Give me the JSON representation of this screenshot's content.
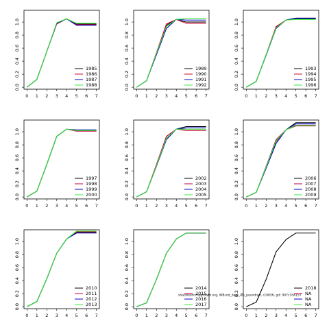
{
  "chart_data": [
    {
      "type": "line",
      "x": [
        0,
        1,
        2,
        3,
        4,
        5,
        6,
        7
      ],
      "xlim": [
        -0.3,
        7.3
      ],
      "ylim": [
        -0.03,
        1.18
      ],
      "xticks": [
        0,
        1,
        2,
        3,
        4,
        5,
        6,
        7
      ],
      "yticks": [
        {
          "value": 0,
          "label": "0.0"
        },
        0.2,
        0.4,
        0.6,
        0.8,
        {
          "value": 1,
          "label": "1.0"
        }
      ],
      "legend": "lower right",
      "series": [
        {
          "name": "1985",
          "color": "#000000",
          "values": [
            0,
            0.12,
            0.55,
            0.98,
            1.05,
            0.97,
            0.97,
            0.97
          ]
        },
        {
          "name": "1986",
          "color": "#cc0033",
          "values": [
            0,
            0.12,
            0.55,
            0.97,
            1.05,
            0.96,
            0.96,
            0.96
          ]
        },
        {
          "name": "1987",
          "color": "#0000cc",
          "values": [
            0,
            0.12,
            0.55,
            0.98,
            1.05,
            0.95,
            0.95,
            0.95
          ]
        },
        {
          "name": "1988",
          "color": "#33ee33",
          "values": [
            0,
            0.12,
            0.55,
            0.99,
            1.05,
            0.98,
            0.98,
            0.98
          ]
        }
      ]
    },
    {
      "type": "line",
      "x": [
        0,
        1,
        2,
        3,
        4,
        5,
        6,
        7
      ],
      "xlim": [
        -0.3,
        7.3
      ],
      "ylim": [
        -0.03,
        1.18
      ],
      "xticks": [
        0,
        1,
        2,
        3,
        4,
        5,
        6,
        7
      ],
      "yticks": [
        {
          "value": 0,
          "label": "0.0"
        },
        0.2,
        0.4,
        0.6,
        0.8,
        {
          "value": 1,
          "label": "1.0"
        }
      ],
      "legend": "lower right",
      "series": [
        {
          "name": "1989",
          "color": "#000000",
          "values": [
            0,
            0.1,
            0.52,
            0.95,
            1.04,
            1.0,
            1.0,
            1.0
          ]
        },
        {
          "name": "1990",
          "color": "#cc0033",
          "values": [
            0,
            0.1,
            0.53,
            0.97,
            1.04,
            0.98,
            0.98,
            0.98
          ]
        },
        {
          "name": "1991",
          "color": "#0000cc",
          "values": [
            0,
            0.1,
            0.5,
            0.9,
            1.04,
            1.03,
            1.03,
            1.03
          ]
        },
        {
          "name": "1992",
          "color": "#33ee33",
          "values": [
            0,
            0.1,
            0.52,
            0.93,
            1.04,
            1.05,
            1.05,
            1.05
          ]
        }
      ]
    },
    {
      "type": "line",
      "x": [
        0,
        1,
        2,
        3,
        4,
        5,
        6,
        7
      ],
      "xlim": [
        -0.3,
        7.3
      ],
      "ylim": [
        -0.03,
        1.18
      ],
      "xticks": [
        0,
        1,
        2,
        3,
        4,
        5,
        6,
        7
      ],
      "yticks": [
        {
          "value": 0,
          "label": "0.0"
        },
        0.2,
        0.4,
        0.6,
        0.8,
        {
          "value": 1,
          "label": "1.0"
        }
      ],
      "legend": "lower right",
      "series": [
        {
          "name": "1993",
          "color": "#000000",
          "values": [
            0,
            0.09,
            0.5,
            0.92,
            1.03,
            1.05,
            1.05,
            1.05
          ]
        },
        {
          "name": "1994",
          "color": "#cc0033",
          "values": [
            0,
            0.09,
            0.5,
            0.93,
            1.03,
            1.06,
            1.06,
            1.06
          ]
        },
        {
          "name": "1995",
          "color": "#0000cc",
          "values": [
            0,
            0.09,
            0.49,
            0.9,
            1.03,
            1.06,
            1.06,
            1.06
          ]
        },
        {
          "name": "1996",
          "color": "#33ee33",
          "values": [
            0,
            0.09,
            0.5,
            0.91,
            1.03,
            1.04,
            1.04,
            1.04
          ]
        }
      ]
    },
    {
      "type": "line",
      "x": [
        0,
        1,
        2,
        3,
        4,
        5,
        6,
        7
      ],
      "xlim": [
        -0.3,
        7.3
      ],
      "ylim": [
        -0.03,
        1.18
      ],
      "xticks": [
        0,
        1,
        2,
        3,
        4,
        5,
        6,
        7
      ],
      "yticks": [
        {
          "value": 0,
          "label": "0.0"
        },
        0.2,
        0.4,
        0.6,
        0.8,
        {
          "value": 1,
          "label": "1.0"
        }
      ],
      "legend": "lower right",
      "series": [
        {
          "name": "1997",
          "color": "#000000",
          "values": [
            0,
            0.09,
            0.5,
            0.93,
            1.04,
            1.02,
            1.02,
            1.02
          ]
        },
        {
          "name": "1998",
          "color": "#cc0033",
          "values": [
            0,
            0.09,
            0.5,
            0.93,
            1.04,
            1.01,
            1.01,
            1.01
          ]
        },
        {
          "name": "1999",
          "color": "#0000cc",
          "values": [
            0,
            0.09,
            0.5,
            0.93,
            1.04,
            1.03,
            1.03,
            1.03
          ]
        },
        {
          "name": "2000",
          "color": "#33ee33",
          "values": [
            0,
            0.09,
            0.5,
            0.93,
            1.04,
            1.02,
            1.02,
            1.02
          ]
        }
      ]
    },
    {
      "type": "line",
      "x": [
        0,
        1,
        2,
        3,
        4,
        5,
        6,
        7
      ],
      "xlim": [
        -0.3,
        7.3
      ],
      "ylim": [
        -0.03,
        1.18
      ],
      "xticks": [
        0,
        1,
        2,
        3,
        4,
        5,
        6,
        7
      ],
      "yticks": [
        {
          "value": 0,
          "label": "0.0"
        },
        0.2,
        0.4,
        0.6,
        0.8,
        {
          "value": 1,
          "label": "1.0"
        }
      ],
      "legend": "lower right",
      "series": [
        {
          "name": "2002",
          "color": "#000000",
          "values": [
            0,
            0.08,
            0.48,
            0.9,
            1.04,
            1.08,
            1.08,
            1.08
          ]
        },
        {
          "name": "2003",
          "color": "#cc0033",
          "values": [
            0,
            0.08,
            0.5,
            0.93,
            1.04,
            1.02,
            1.02,
            1.02
          ]
        },
        {
          "name": "2004",
          "color": "#0000cc",
          "values": [
            0,
            0.08,
            0.47,
            0.88,
            1.04,
            1.06,
            1.06,
            1.06
          ]
        },
        {
          "name": "2005",
          "color": "#33ee33",
          "values": [
            0,
            0.08,
            0.48,
            0.9,
            1.04,
            1.04,
            1.04,
            1.04
          ]
        }
      ]
    },
    {
      "type": "line",
      "x": [
        0,
        1,
        2,
        3,
        4,
        5,
        6,
        7
      ],
      "xlim": [
        -0.3,
        7.3
      ],
      "ylim": [
        -0.03,
        1.18
      ],
      "xticks": [
        0,
        1,
        2,
        3,
        4,
        5,
        6,
        7
      ],
      "yticks": [
        {
          "value": 0,
          "label": "0.0"
        },
        0.2,
        0.4,
        0.6,
        0.8,
        {
          "value": 1,
          "label": "1.0"
        }
      ],
      "legend": "lower right",
      "series": [
        {
          "name": "2006",
          "color": "#000000",
          "values": [
            0,
            0.07,
            0.45,
            0.85,
            1.03,
            1.14,
            1.14,
            1.14
          ]
        },
        {
          "name": "2007",
          "color": "#cc0033",
          "values": [
            0,
            0.07,
            0.47,
            0.88,
            1.03,
            1.09,
            1.09,
            1.09
          ]
        },
        {
          "name": "2008",
          "color": "#0000cc",
          "values": [
            0,
            0.07,
            0.44,
            0.82,
            1.03,
            1.12,
            1.12,
            1.12
          ]
        },
        {
          "name": "2009",
          "color": "#33ee33",
          "values": [
            0,
            0.07,
            0.46,
            0.86,
            1.03,
            1.1,
            1.1,
            1.1
          ]
        }
      ]
    },
    {
      "type": "line",
      "x": [
        0,
        1,
        2,
        3,
        4,
        5,
        6,
        7
      ],
      "xlim": [
        -0.3,
        7.3
      ],
      "ylim": [
        -0.03,
        1.18
      ],
      "xticks": [
        0,
        1,
        2,
        3,
        4,
        5,
        6,
        7
      ],
      "yticks": [
        {
          "value": 0,
          "label": "0.0"
        },
        0.2,
        0.4,
        0.6,
        0.8,
        {
          "value": 1,
          "label": "1.0"
        }
      ],
      "legend": "lower right",
      "series": [
        {
          "name": "2010",
          "color": "#000000",
          "values": [
            0,
            0.08,
            0.43,
            0.82,
            1.04,
            1.14,
            1.14,
            1.14
          ]
        },
        {
          "name": "2011",
          "color": "#cc0033",
          "values": [
            0,
            0.08,
            0.43,
            0.82,
            1.04,
            1.15,
            1.15,
            1.15
          ]
        },
        {
          "name": "2012",
          "color": "#0000cc",
          "values": [
            0,
            0.08,
            0.43,
            0.82,
            1.04,
            1.13,
            1.13,
            1.13
          ]
        },
        {
          "name": "2013",
          "color": "#33ee33",
          "values": [
            0,
            0.08,
            0.43,
            0.82,
            1.04,
            1.16,
            1.16,
            1.16
          ]
        }
      ]
    },
    {
      "type": "line",
      "x": [
        0,
        1,
        2,
        3,
        4,
        5,
        6,
        7
      ],
      "xlim": [
        -0.3,
        7.3
      ],
      "ylim": [
        -0.03,
        1.18
      ],
      "xticks": [
        0,
        1,
        2,
        3,
        4,
        5,
        6,
        7
      ],
      "yticks": [
        {
          "value": 0,
          "label": "0.0"
        },
        0.2,
        0.4,
        0.6,
        0.8,
        {
          "value": 1,
          "label": "1.0"
        }
      ],
      "legend": "lower right",
      "annotation": "shackleshrimpgrowth.org, WBcod_data_Ais_poundnet, r10656, git: 907c7d4157",
      "series": [
        {
          "name": "2014",
          "color": "#000000",
          "values": [
            0,
            0.06,
            0.42,
            0.82,
            1.04,
            1.13,
            1.13,
            1.13
          ]
        },
        {
          "name": "2015",
          "color": "#cc0033",
          "values": [
            0,
            0.06,
            0.42,
            0.82,
            1.04,
            1.13,
            1.13,
            1.13
          ]
        },
        {
          "name": "2016",
          "color": "#0000cc",
          "values": [
            0,
            0.06,
            0.42,
            0.82,
            1.04,
            1.13,
            1.13,
            1.13
          ]
        },
        {
          "name": "2017",
          "color": "#33ee33",
          "values": [
            0,
            0.06,
            0.42,
            0.82,
            1.04,
            1.13,
            1.13,
            1.13
          ]
        }
      ]
    },
    {
      "type": "line",
      "x": [
        0,
        1,
        2,
        3,
        4,
        5,
        6,
        7
      ],
      "xlim": [
        -0.3,
        7.3
      ],
      "ylim": [
        -0.03,
        1.18
      ],
      "xticks": [
        0,
        1,
        2,
        3,
        4,
        5,
        6,
        7
      ],
      "yticks": [
        {
          "value": 0,
          "label": "0.0"
        },
        0.2,
        0.4,
        0.6,
        0.8,
        {
          "value": 1,
          "label": "1.0"
        }
      ],
      "legend": "lower right",
      "series": [
        {
          "name": "2018",
          "color": "#000000",
          "values": [
            0,
            0.07,
            0.42,
            0.84,
            1.03,
            1.13,
            1.13,
            1.13
          ]
        },
        {
          "name": "NA",
          "color": "#cc0033",
          "values": [
            null,
            null,
            null,
            null,
            null,
            null,
            null,
            null
          ]
        },
        {
          "name": "NA",
          "color": "#0000cc",
          "values": [
            null,
            null,
            null,
            null,
            null,
            null,
            null,
            null
          ]
        },
        {
          "name": "NA",
          "color": "#33ee33",
          "values": [
            null,
            null,
            null,
            null,
            null,
            null,
            null,
            null
          ]
        }
      ]
    }
  ]
}
